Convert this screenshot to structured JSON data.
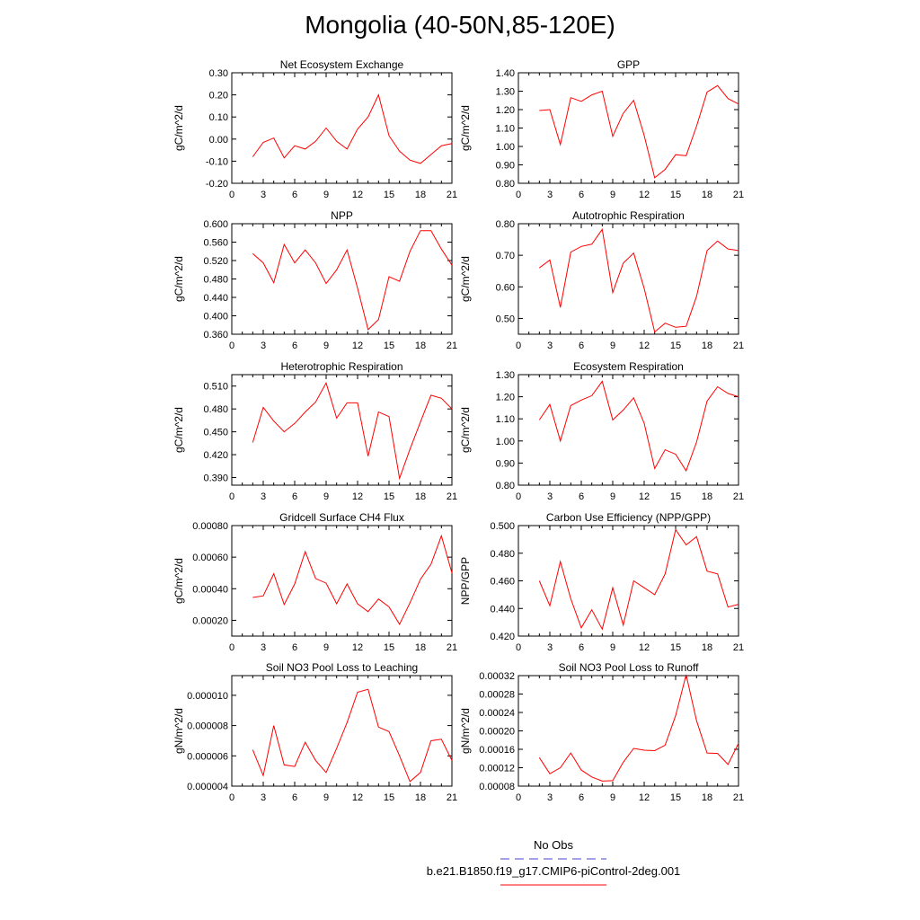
{
  "figure": {
    "title": "Mongolia (40-50N,85-120E)",
    "line_color": "#ff0000",
    "obs_line_color": "#4444cc"
  },
  "legend": {
    "items": [
      {
        "label": "No Obs",
        "style": "dashed",
        "color": "#4444cc"
      },
      {
        "label": "b.e21.B1850.f19_g17.CMIP6-piControl-2deg.001",
        "style": "solid",
        "color": "#ff0000"
      }
    ]
  },
  "chart_data": [
    {
      "type": "line",
      "title": "Net Ecosystem Exchange",
      "ylabel": "gC/m^2/d",
      "xlim": [
        0,
        21
      ],
      "xticks": [
        0,
        3,
        6,
        9,
        12,
        15,
        18,
        21
      ],
      "ylim": [
        -0.2,
        0.3
      ],
      "yticks": [
        -0.2,
        -0.1,
        0.0,
        0.1,
        0.2,
        0.3
      ],
      "ytick_labels": [
        "-0.20",
        "-0.10",
        "0.00",
        "0.10",
        "0.20",
        "0.30"
      ],
      "x": [
        2,
        3,
        4,
        5,
        6,
        7,
        8,
        9,
        10,
        11,
        12,
        13,
        14,
        15,
        16,
        17,
        18,
        19,
        20,
        21
      ],
      "series": [
        {
          "values": [
            -0.08,
            -0.015,
            0.005,
            -0.085,
            -0.03,
            -0.045,
            -0.01,
            0.05,
            -0.01,
            -0.045,
            0.045,
            0.1,
            0.2,
            0.015,
            -0.055,
            -0.095,
            -0.11,
            -0.07,
            -0.03,
            -0.02
          ]
        }
      ]
    },
    {
      "type": "line",
      "title": "GPP",
      "ylabel": "gC/m^2/d",
      "xlim": [
        0,
        21
      ],
      "xticks": [
        0,
        3,
        6,
        9,
        12,
        15,
        18,
        21
      ],
      "ylim": [
        0.8,
        1.4
      ],
      "yticks": [
        0.8,
        0.9,
        1.0,
        1.1,
        1.2,
        1.3,
        1.4
      ],
      "ytick_labels": [
        "0.80",
        "0.90",
        "1.00",
        "1.10",
        "1.20",
        "1.30",
        "1.40"
      ],
      "x": [
        2,
        3,
        4,
        5,
        6,
        7,
        8,
        9,
        10,
        11,
        12,
        13,
        14,
        15,
        16,
        17,
        18,
        19,
        20,
        21
      ],
      "series": [
        {
          "values": [
            1.195,
            1.2,
            1.01,
            1.265,
            1.245,
            1.28,
            1.3,
            1.055,
            1.18,
            1.25,
            1.06,
            0.83,
            0.875,
            0.955,
            0.95,
            1.11,
            1.295,
            1.33,
            1.26,
            1.23
          ]
        }
      ]
    },
    {
      "type": "line",
      "title": "NPP",
      "ylabel": "gC/m^2/d",
      "xlim": [
        0,
        21
      ],
      "xticks": [
        0,
        3,
        6,
        9,
        12,
        15,
        18,
        21
      ],
      "ylim": [
        0.36,
        0.6
      ],
      "yticks": [
        0.36,
        0.4,
        0.44,
        0.48,
        0.52,
        0.56,
        0.6
      ],
      "ytick_labels": [
        "0.360",
        "0.400",
        "0.440",
        "0.480",
        "0.520",
        "0.560",
        "0.600"
      ],
      "x": [
        2,
        3,
        4,
        5,
        6,
        7,
        8,
        9,
        10,
        11,
        12,
        13,
        14,
        15,
        16,
        17,
        18,
        19,
        20,
        21
      ],
      "series": [
        {
          "values": [
            0.535,
            0.515,
            0.472,
            0.555,
            0.515,
            0.543,
            0.515,
            0.47,
            0.5,
            0.543,
            0.46,
            0.37,
            0.392,
            0.485,
            0.475,
            0.54,
            0.585,
            0.585,
            0.545,
            0.51
          ]
        }
      ]
    },
    {
      "type": "line",
      "title": "Autotrophic Respiration",
      "ylabel": "gC/m^2/d",
      "xlim": [
        0,
        21
      ],
      "xticks": [
        0,
        3,
        6,
        9,
        12,
        15,
        18,
        21
      ],
      "ylim": [
        0.45,
        0.8
      ],
      "yticks": [
        0.5,
        0.6,
        0.7,
        0.8
      ],
      "ytick_labels": [
        "0.50",
        "0.60",
        "0.70",
        "0.80"
      ],
      "x": [
        2,
        3,
        4,
        5,
        6,
        7,
        8,
        9,
        10,
        11,
        12,
        13,
        14,
        15,
        16,
        17,
        18,
        19,
        20,
        21
      ],
      "series": [
        {
          "values": [
            0.66,
            0.685,
            0.535,
            0.71,
            0.728,
            0.735,
            0.782,
            0.582,
            0.675,
            0.707,
            0.595,
            0.457,
            0.485,
            0.472,
            0.475,
            0.57,
            0.715,
            0.745,
            0.72,
            0.715
          ]
        }
      ]
    },
    {
      "type": "line",
      "title": "Heterotrophic Respiration",
      "ylabel": "gC/m^2/d",
      "xlim": [
        0,
        21
      ],
      "xticks": [
        0,
        3,
        6,
        9,
        12,
        15,
        18,
        21
      ],
      "ylim": [
        0.38,
        0.525
      ],
      "yticks": [
        0.39,
        0.42,
        0.45,
        0.48,
        0.51
      ],
      "ytick_labels": [
        "0.390",
        "0.420",
        "0.450",
        "0.480",
        "0.510"
      ],
      "x": [
        2,
        3,
        4,
        5,
        6,
        7,
        8,
        9,
        10,
        11,
        12,
        13,
        14,
        15,
        16,
        17,
        18,
        19,
        20,
        21
      ],
      "series": [
        {
          "values": [
            0.436,
            0.482,
            0.464,
            0.45,
            0.461,
            0.476,
            0.489,
            0.514,
            0.468,
            0.488,
            0.488,
            0.418,
            0.476,
            0.47,
            0.389,
            0.427,
            0.463,
            0.498,
            0.494,
            0.48
          ]
        }
      ]
    },
    {
      "type": "line",
      "title": "Ecosystem Respiration",
      "ylabel": "gC/m^2/d",
      "xlim": [
        0,
        21
      ],
      "xticks": [
        0,
        3,
        6,
        9,
        12,
        15,
        18,
        21
      ],
      "ylim": [
        0.8,
        1.3
      ],
      "yticks": [
        0.8,
        0.9,
        1.0,
        1.1,
        1.2,
        1.3
      ],
      "ytick_labels": [
        "0.80",
        "0.90",
        "1.00",
        "1.10",
        "1.20",
        "1.30"
      ],
      "x": [
        2,
        3,
        4,
        5,
        6,
        7,
        8,
        9,
        10,
        11,
        12,
        13,
        14,
        15,
        16,
        17,
        18,
        19,
        20,
        21
      ],
      "series": [
        {
          "values": [
            1.095,
            1.165,
            1.0,
            1.16,
            1.185,
            1.205,
            1.27,
            1.095,
            1.14,
            1.195,
            1.08,
            0.875,
            0.96,
            0.94,
            0.865,
            0.995,
            1.18,
            1.245,
            1.215,
            1.2
          ]
        }
      ]
    },
    {
      "type": "line",
      "title": "Gridcell Surface CH4 Flux",
      "ylabel": "gC/m^2/d",
      "xlim": [
        0,
        21
      ],
      "xticks": [
        0,
        3,
        6,
        9,
        12,
        15,
        18,
        21
      ],
      "ylim": [
        0.0001,
        0.0008
      ],
      "yticks": [
        0.0002,
        0.0004,
        0.0006,
        0.0008
      ],
      "ytick_labels": [
        "0.00020",
        "0.00040",
        "0.00060",
        "0.00080"
      ],
      "x": [
        2,
        3,
        4,
        5,
        6,
        7,
        8,
        9,
        10,
        11,
        12,
        13,
        14,
        15,
        16,
        17,
        18,
        19,
        20,
        21
      ],
      "series": [
        {
          "values": [
            0.000345,
            0.000355,
            0.000495,
            0.0003,
            0.00043,
            0.000635,
            0.000465,
            0.000435,
            0.000305,
            0.00043,
            0.000305,
            0.000255,
            0.000335,
            0.000285,
            0.000175,
            0.00031,
            0.00046,
            0.000555,
            0.000735,
            0.0005
          ]
        }
      ]
    },
    {
      "type": "line",
      "title": "Carbon Use Efficiency (NPP/GPP)",
      "ylabel": "NPP/GPP",
      "xlim": [
        0,
        21
      ],
      "xticks": [
        0,
        3,
        6,
        9,
        12,
        15,
        18,
        21
      ],
      "ylim": [
        0.42,
        0.5
      ],
      "yticks": [
        0.42,
        0.44,
        0.46,
        0.48,
        0.5
      ],
      "ytick_labels": [
        "0.420",
        "0.440",
        "0.460",
        "0.480",
        "0.500"
      ],
      "x": [
        2,
        3,
        4,
        5,
        6,
        7,
        8,
        9,
        10,
        11,
        12,
        13,
        14,
        15,
        16,
        17,
        18,
        19,
        20,
        21
      ],
      "series": [
        {
          "values": [
            0.46,
            0.442,
            0.474,
            0.447,
            0.426,
            0.439,
            0.425,
            0.455,
            0.428,
            0.46,
            0.455,
            0.45,
            0.465,
            0.497,
            0.486,
            0.492,
            0.467,
            0.465,
            0.441,
            0.443
          ]
        }
      ]
    },
    {
      "type": "line",
      "title": "Soil NO3 Pool Loss to Leaching",
      "ylabel": "gN/m^2/d",
      "xlim": [
        0,
        21
      ],
      "xticks": [
        0,
        3,
        6,
        9,
        12,
        15,
        18,
        21
      ],
      "ylim": [
        4e-06,
        1.13e-05
      ],
      "yticks": [
        4e-06,
        6e-06,
        8e-06,
        1e-05
      ],
      "ytick_labels": [
        "0.000004",
        "0.000006",
        "0.000008",
        "0.000010"
      ],
      "x": [
        2,
        3,
        4,
        5,
        6,
        7,
        8,
        9,
        10,
        11,
        12,
        13,
        14,
        15,
        16,
        17,
        18,
        19,
        20,
        21
      ],
      "series": [
        {
          "values": [
            6.4e-06,
            4.7e-06,
            8e-06,
            5.4e-06,
            5.3e-06,
            6.9e-06,
            5.7e-06,
            4.9e-06,
            6.5e-06,
            8.2e-06,
            1.02e-05,
            1.04e-05,
            7.9e-06,
            7.6e-06,
            6e-06,
            4.3e-06,
            4.9e-06,
            7e-06,
            7.1e-06,
            5.7e-06
          ]
        }
      ]
    },
    {
      "type": "line",
      "title": "Soil NO3 Pool Loss to Runoff",
      "ylabel": "gN/m^2/d",
      "xlim": [
        0,
        21
      ],
      "xticks": [
        0,
        3,
        6,
        9,
        12,
        15,
        18,
        21
      ],
      "ylim": [
        8e-05,
        0.00032
      ],
      "yticks": [
        8e-05,
        0.00012,
        0.00016,
        0.0002,
        0.00024,
        0.00028,
        0.00032
      ],
      "ytick_labels": [
        "0.00008",
        "0.00012",
        "0.00016",
        "0.00020",
        "0.00024",
        "0.00028",
        "0.00032"
      ],
      "x": [
        2,
        3,
        4,
        5,
        6,
        7,
        8,
        9,
        10,
        11,
        12,
        13,
        14,
        15,
        16,
        17,
        18,
        19,
        20,
        21
      ],
      "series": [
        {
          "values": [
            0.000142,
            0.000107,
            0.00012,
            0.000152,
            0.000115,
            0.0001,
            9.1e-05,
            9.2e-05,
            0.000132,
            0.000162,
            0.000158,
            0.000157,
            0.000169,
            0.000233,
            0.000322,
            0.000222,
            0.000152,
            0.000151,
            0.000127,
            0.000173
          ]
        }
      ]
    }
  ]
}
